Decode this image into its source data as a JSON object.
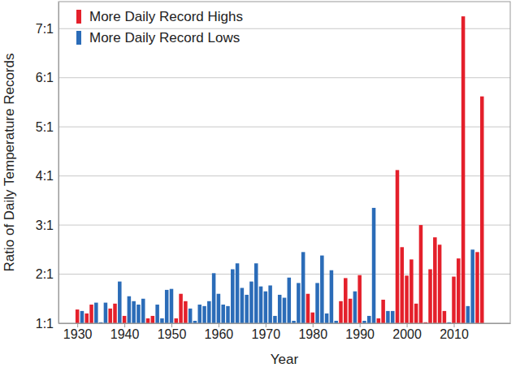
{
  "chart_data": {
    "type": "bar",
    "x_label": "Year",
    "y_label": "Ratio of Daily Temperature Records",
    "x": [
      1930,
      1931,
      1932,
      1933,
      1934,
      1935,
      1936,
      1937,
      1938,
      1939,
      1940,
      1941,
      1942,
      1943,
      1944,
      1945,
      1946,
      1947,
      1948,
      1949,
      1950,
      1951,
      1952,
      1953,
      1954,
      1955,
      1956,
      1957,
      1958,
      1959,
      1960,
      1961,
      1962,
      1963,
      1964,
      1965,
      1966,
      1967,
      1968,
      1969,
      1970,
      1971,
      1972,
      1973,
      1974,
      1975,
      1976,
      1977,
      1978,
      1979,
      1980,
      1981,
      1982,
      1983,
      1984,
      1985,
      1986,
      1987,
      1988,
      1989,
      1990,
      1991,
      1992,
      1993,
      1994,
      1995,
      1996,
      1997,
      1998,
      1999,
      2000,
      2001,
      2002,
      2003,
      2004,
      2005,
      2006,
      2007,
      2008,
      2009,
      2010,
      2011,
      2012,
      2013,
      2014,
      2015,
      2016
    ],
    "series": [
      {
        "name": "More Daily Record Highs",
        "color": "#e4202b",
        "values": [
          1.28,
          null,
          1.2,
          1.38,
          null,
          null,
          null,
          1.3,
          1.4,
          null,
          1.15,
          null,
          null,
          null,
          null,
          1.1,
          1.15,
          null,
          null,
          null,
          null,
          1.1,
          1.6,
          1.45,
          null,
          null,
          null,
          null,
          null,
          null,
          null,
          null,
          null,
          null,
          null,
          null,
          null,
          null,
          null,
          null,
          null,
          null,
          null,
          null,
          null,
          null,
          null,
          null,
          null,
          1.6,
          1.22,
          null,
          null,
          null,
          null,
          null,
          1.45,
          1.92,
          1.5,
          null,
          1.98,
          null,
          null,
          null,
          1.1,
          1.48,
          null,
          null,
          4.12,
          2.55,
          1.97,
          2.3,
          1.4,
          3.0,
          1.02,
          2.1,
          2.75,
          2.6,
          1.25,
          null,
          1.95,
          2.32,
          7.25,
          null,
          null,
          2.45,
          5.62
        ]
      },
      {
        "name": "More Daily Record Lows",
        "color": "#2b6cb8",
        "values": [
          null,
          1.25,
          null,
          null,
          1.42,
          1.02,
          1.42,
          null,
          null,
          1.85,
          null,
          1.55,
          1.45,
          1.38,
          1.5,
          null,
          null,
          1.38,
          1.1,
          1.68,
          1.7,
          null,
          null,
          null,
          1.3,
          1.05,
          1.38,
          1.35,
          1.45,
          2.02,
          1.6,
          1.38,
          1.35,
          2.1,
          2.22,
          1.72,
          1.58,
          1.85,
          2.22,
          1.75,
          1.65,
          1.77,
          1.15,
          1.58,
          1.52,
          1.93,
          1.05,
          1.82,
          2.45,
          null,
          null,
          1.82,
          2.38,
          1.2,
          2.08,
          1.05,
          null,
          null,
          null,
          1.65,
          null,
          1.05,
          1.15,
          3.35,
          null,
          null,
          1.25,
          1.25,
          null,
          null,
          null,
          null,
          null,
          null,
          null,
          null,
          null,
          null,
          null,
          1.02,
          null,
          null,
          null,
          1.35,
          2.5,
          null,
          null
        ]
      }
    ],
    "xlim": [
      1926,
      2022
    ],
    "xticks": [
      1930,
      1940,
      1950,
      1960,
      1970,
      1980,
      1990,
      2000,
      2010
    ],
    "ylim": [
      1,
      7.55
    ],
    "yticks": [
      {
        "value": 1,
        "label": "1:1"
      },
      {
        "value": 2,
        "label": "2:1"
      },
      {
        "value": 3,
        "label": "3:1"
      },
      {
        "value": 4,
        "label": "4:1"
      },
      {
        "value": 5,
        "label": "5:1"
      },
      {
        "value": 6,
        "label": "6:1"
      },
      {
        "value": 7,
        "label": "7:1"
      }
    ],
    "grid": true,
    "legend": "upper left"
  }
}
